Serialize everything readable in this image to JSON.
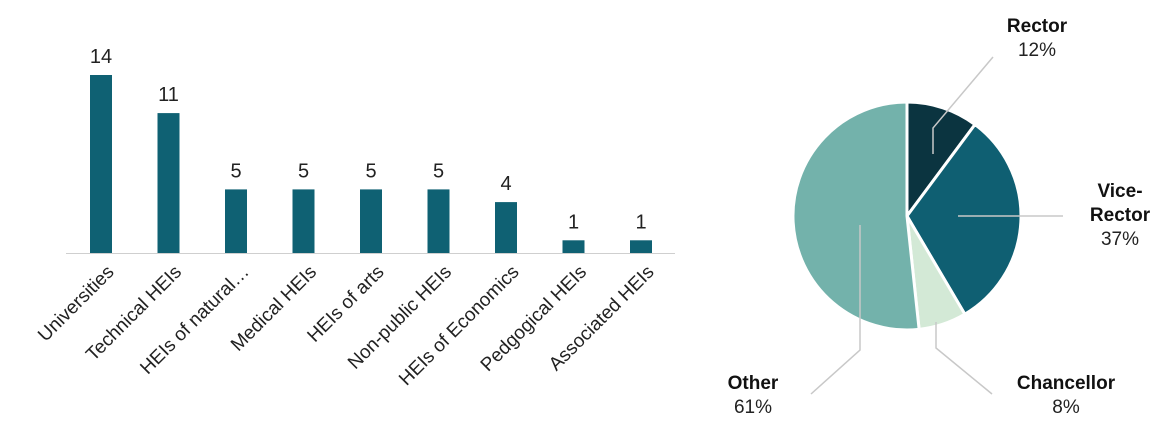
{
  "chart_data": [
    {
      "type": "bar",
      "title": "",
      "xlabel": "",
      "ylabel": "",
      "categories": [
        "Universities",
        "Technical HEIs",
        "HEIs of natural…",
        "Medical HEIs",
        "HEIs of arts",
        "Non-public HEIs",
        "HEIs of Economics",
        "Pedgogical HEIs",
        "Associated HEIs"
      ],
      "values": [
        14,
        11,
        5,
        5,
        5,
        5,
        4,
        1,
        1
      ],
      "ylim": [
        0,
        14
      ],
      "grid": false,
      "data_labels": true,
      "bar_color": "#0f6173"
    },
    {
      "type": "pie",
      "title": "",
      "start": "top",
      "direction": "clockwise",
      "slices": [
        {
          "label": "Rector",
          "pct_label": "12%",
          "value": 12,
          "color": "#0b3440"
        },
        {
          "label": "Vice-Rector",
          "label_lines": [
            "Vice-",
            "Rector"
          ],
          "pct_label": "37%",
          "value": 37,
          "color": "#0f5f72"
        },
        {
          "label": "Chancellor",
          "pct_label": "8%",
          "value": 8,
          "color": "#d3e9d6"
        },
        {
          "label": "Other",
          "pct_label": "61%",
          "value": 61,
          "color": "#73b2ab"
        }
      ]
    }
  ]
}
